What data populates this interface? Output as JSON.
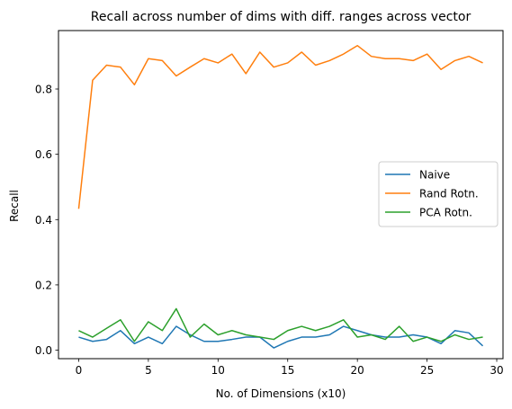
{
  "chart_data": {
    "type": "line",
    "title": "Recall across number of dims with diff. ranges across vector",
    "xlabel": "No. of Dimensions (x10)",
    "ylabel": "Recall",
    "xlim": [
      -1.45,
      30.45
    ],
    "ylim": [
      -0.026,
      0.979
    ],
    "xticks": [
      0,
      5,
      10,
      15,
      20,
      25,
      30
    ],
    "yticks": [
      0.0,
      0.2,
      0.4,
      0.6,
      0.8
    ],
    "grid": false,
    "legend_position": "center-right",
    "x": [
      0,
      1,
      2,
      3,
      4,
      5,
      6,
      7,
      8,
      9,
      10,
      11,
      12,
      13,
      14,
      15,
      16,
      17,
      18,
      19,
      20,
      21,
      22,
      23,
      24,
      25,
      26,
      27,
      28,
      29
    ],
    "series": [
      {
        "name": "Naive",
        "color": "#1f77b4",
        "values": [
          0.04,
          0.027,
          0.033,
          0.06,
          0.02,
          0.04,
          0.02,
          0.073,
          0.047,
          0.027,
          0.027,
          0.033,
          0.04,
          0.04,
          0.007,
          0.027,
          0.04,
          0.04,
          0.047,
          0.073,
          0.06,
          0.047,
          0.04,
          0.04,
          0.047,
          0.04,
          0.02,
          0.06,
          0.053,
          0.013
        ]
      },
      {
        "name": "Rand Rotn.",
        "color": "#ff7f0e",
        "values": [
          0.433,
          0.827,
          0.873,
          0.867,
          0.813,
          0.893,
          0.887,
          0.84,
          0.867,
          0.893,
          0.88,
          0.907,
          0.847,
          0.913,
          0.867,
          0.88,
          0.913,
          0.873,
          0.887,
          0.907,
          0.933,
          0.9,
          0.893,
          0.893,
          0.887,
          0.907,
          0.86,
          0.887,
          0.9,
          0.88
        ]
      },
      {
        "name": "PCA Rotn.",
        "color": "#2ca02c",
        "values": [
          0.06,
          0.04,
          0.067,
          0.093,
          0.027,
          0.087,
          0.06,
          0.127,
          0.04,
          0.08,
          0.047,
          0.06,
          0.047,
          0.04,
          0.033,
          0.06,
          0.073,
          0.06,
          0.073,
          0.093,
          0.04,
          0.047,
          0.033,
          0.073,
          0.027,
          0.04,
          0.027,
          0.047,
          0.033,
          0.04
        ]
      }
    ]
  }
}
